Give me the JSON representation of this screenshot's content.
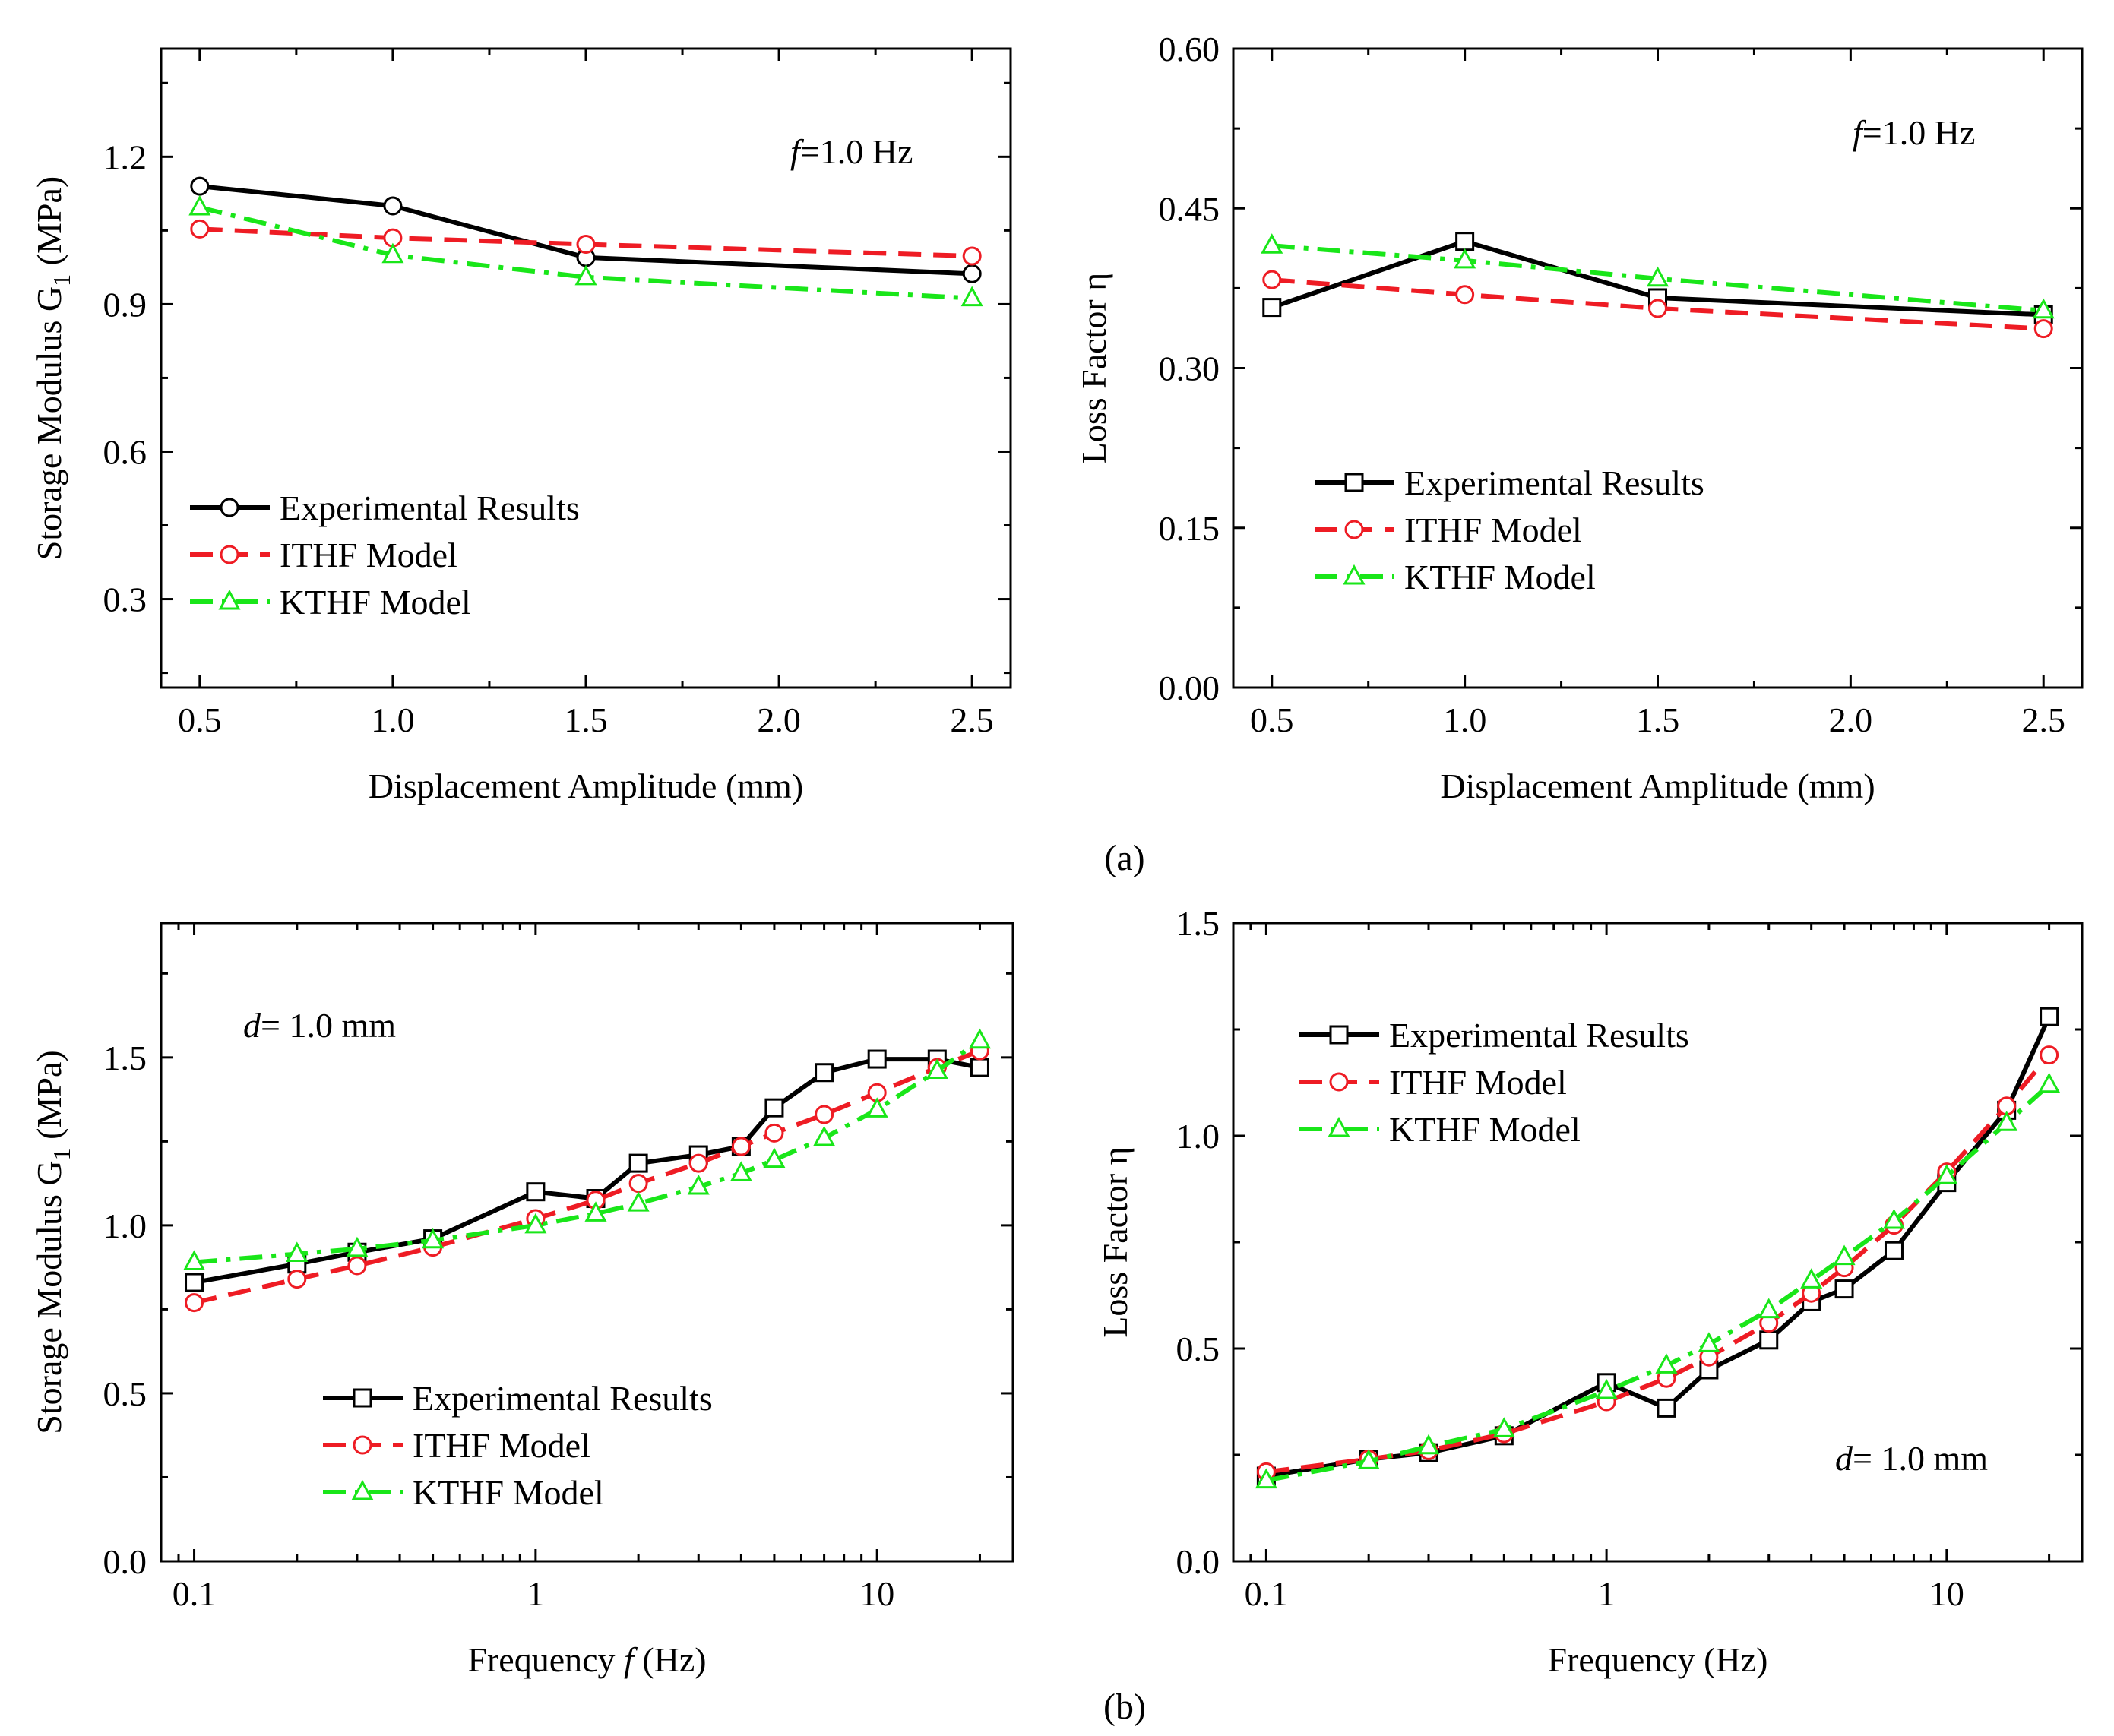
{
  "colors": {
    "experimental": "#000000",
    "ithf": "#ee1c24",
    "kthf": "#19e619"
  },
  "panel_labels": [
    "(a)",
    "(b)"
  ],
  "chart_data": [
    {
      "type": "line",
      "panel": "(a) left",
      "xlabel": "Displacement Amplitude  (mm)",
      "ylabel": "Storage Modulus G",
      "ylabel_sub": "1",
      "ylabel_unit": "(MPa)",
      "xscale": "linear",
      "xlim": [
        0.4,
        2.6
      ],
      "ylim": [
        0.12,
        1.42
      ],
      "xticks": [
        0.5,
        1.0,
        1.5,
        2.0,
        2.5
      ],
      "xtick_labels": [
        "0.5",
        "1.0",
        "1.5",
        "2.0",
        "2.5"
      ],
      "yticks": [
        0.3,
        0.6,
        0.9,
        1.2
      ],
      "ytick_labels": [
        "0.3",
        "0.6",
        "0.9",
        "1.2"
      ],
      "annotation": {
        "var": "f",
        "text": "=1.0 Hz",
        "position": "top-right"
      },
      "legend": {
        "position": "lower-left",
        "entries": [
          "Experimental Results",
          "ITHF Model",
          "KTHF Model"
        ]
      },
      "series": [
        {
          "name": "Experimental Results",
          "style": "solid",
          "marker": "circle",
          "x": [
            0.5,
            1.0,
            1.5,
            2.5
          ],
          "values": [
            1.14,
            1.1,
            0.995,
            0.962
          ]
        },
        {
          "name": "ITHF Model",
          "style": "dashed",
          "marker": "circle",
          "x": [
            0.5,
            1.0,
            1.5,
            2.5
          ],
          "values": [
            1.053,
            1.035,
            1.022,
            0.998
          ]
        },
        {
          "name": "KTHF Model",
          "style": "dashdot",
          "marker": "triangle",
          "x": [
            0.5,
            1.0,
            1.5,
            2.5
          ],
          "values": [
            1.097,
            1.0,
            0.955,
            0.912
          ]
        }
      ]
    },
    {
      "type": "line",
      "panel": "(a) right",
      "xlabel": "Displacement Amplitude  (mm)",
      "ylabel": "Loss Factor η",
      "xscale": "linear",
      "xlim": [
        0.4,
        2.6
      ],
      "ylim": [
        0.0,
        0.6
      ],
      "xticks": [
        0.5,
        1.0,
        1.5,
        2.0,
        2.5
      ],
      "xtick_labels": [
        "0.5",
        "1.0",
        "1.5",
        "2.0",
        "2.5"
      ],
      "yticks": [
        0.0,
        0.15,
        0.3,
        0.45,
        0.6
      ],
      "ytick_labels": [
        "0.00",
        "0.15",
        "0.30",
        "0.45",
        "0.60"
      ],
      "annotation": {
        "var": "f",
        "text": "=1.0 Hz",
        "position": "top-right"
      },
      "legend": {
        "position": "center-left",
        "entries": [
          "Experimental Results",
          "ITHF Model",
          "KTHF Model"
        ]
      },
      "series": [
        {
          "name": "Experimental Results",
          "style": "solid",
          "marker": "square",
          "x": [
            0.5,
            1.0,
            1.5,
            2.5
          ],
          "values": [
            0.357,
            0.419,
            0.366,
            0.35
          ]
        },
        {
          "name": "ITHF Model",
          "style": "dashed",
          "marker": "circle",
          "x": [
            0.5,
            1.0,
            1.5,
            2.5
          ],
          "values": [
            0.383,
            0.369,
            0.356,
            0.337
          ]
        },
        {
          "name": "KTHF Model",
          "style": "dashdot",
          "marker": "triangle",
          "x": [
            0.5,
            1.0,
            1.5,
            2.5
          ],
          "values": [
            0.415,
            0.401,
            0.384,
            0.354
          ]
        }
      ]
    },
    {
      "type": "line",
      "panel": "(b) left",
      "xlabel": "Frequency",
      "xlabel_var": "f",
      "xlabel_unit": "(Hz)",
      "ylabel": "Storage Modulus G",
      "ylabel_sub": "1",
      "ylabel_unit": "(MPa)",
      "xscale": "log",
      "xlim": [
        0.08,
        25
      ],
      "ylim": [
        0.0,
        1.9
      ],
      "xticks": [
        0.1,
        1,
        10
      ],
      "xtick_labels": [
        "0.1",
        "1",
        "10"
      ],
      "yticks": [
        0.0,
        0.5,
        1.0,
        1.5
      ],
      "ytick_labels": [
        "0.0",
        "0.5",
        "1.0",
        "1.5"
      ],
      "annotation": {
        "var": "d",
        "text": "= 1.0 mm",
        "position": "top-left"
      },
      "legend": {
        "position": "lower-center",
        "entries": [
          "Experimental Results",
          "ITHF Model",
          "KTHF Model"
        ]
      },
      "series": [
        {
          "name": "Experimental Results",
          "style": "solid",
          "marker": "square",
          "x": [
            0.1,
            0.2,
            0.3,
            0.5,
            1,
            1.5,
            2,
            3,
            4,
            5,
            7,
            10,
            15,
            20
          ],
          "values": [
            0.83,
            0.885,
            0.92,
            0.96,
            1.1,
            1.08,
            1.185,
            1.21,
            1.235,
            1.35,
            1.455,
            1.495,
            1.495,
            1.47
          ]
        },
        {
          "name": "ITHF Model",
          "style": "dashed",
          "marker": "circle",
          "x": [
            0.1,
            0.2,
            0.3,
            0.5,
            1,
            1.5,
            2,
            3,
            4,
            5,
            7,
            10,
            15,
            20
          ],
          "values": [
            0.77,
            0.84,
            0.88,
            0.935,
            1.02,
            1.075,
            1.125,
            1.185,
            1.235,
            1.275,
            1.33,
            1.395,
            1.47,
            1.52
          ]
        },
        {
          "name": "KTHF Model",
          "style": "dashdot",
          "marker": "triangle",
          "x": [
            0.1,
            0.2,
            0.3,
            0.5,
            1,
            1.5,
            2,
            3,
            4,
            5,
            7,
            10,
            15,
            20
          ],
          "values": [
            0.89,
            0.915,
            0.93,
            0.955,
            1.0,
            1.035,
            1.065,
            1.115,
            1.155,
            1.195,
            1.26,
            1.345,
            1.46,
            1.55
          ]
        }
      ]
    },
    {
      "type": "line",
      "panel": "(b) right",
      "xlabel": "Frequency  (Hz)",
      "ylabel": "Loss Factor η",
      "xscale": "log",
      "xlim": [
        0.08,
        25
      ],
      "ylim": [
        0.0,
        1.5
      ],
      "xticks": [
        0.1,
        1,
        10
      ],
      "xtick_labels": [
        "0.1",
        "1",
        "10"
      ],
      "yticks": [
        0.0,
        0.5,
        1.0,
        1.5
      ],
      "ytick_labels": [
        "0.0",
        "0.5",
        "1.0",
        "1.5"
      ],
      "annotation": {
        "var": "d",
        "text": "= 1.0 mm",
        "position": "bottom-right"
      },
      "legend": {
        "position": "top-left",
        "entries": [
          "Experimental Results",
          "ITHF Model",
          "KTHF Model"
        ]
      },
      "series": [
        {
          "name": "Experimental Results",
          "style": "solid",
          "marker": "square",
          "x": [
            0.1,
            0.2,
            0.3,
            0.5,
            1,
            1.5,
            2,
            3,
            4,
            5,
            7,
            10,
            15,
            20
          ],
          "values": [
            0.2,
            0.24,
            0.255,
            0.295,
            0.42,
            0.36,
            0.45,
            0.52,
            0.61,
            0.64,
            0.73,
            0.89,
            1.06,
            1.28
          ]
        },
        {
          "name": "ITHF Model",
          "style": "dashed",
          "marker": "circle",
          "x": [
            0.1,
            0.2,
            0.3,
            0.5,
            1,
            1.5,
            2,
            3,
            4,
            5,
            7,
            10,
            15,
            20
          ],
          "values": [
            0.21,
            0.24,
            0.26,
            0.3,
            0.375,
            0.43,
            0.48,
            0.56,
            0.63,
            0.69,
            0.79,
            0.915,
            1.07,
            1.19
          ]
        },
        {
          "name": "KTHF Model",
          "style": "dashdot",
          "marker": "triangle",
          "x": [
            0.1,
            0.2,
            0.3,
            0.5,
            1,
            1.5,
            2,
            3,
            4,
            5,
            7,
            10,
            15,
            20
          ],
          "values": [
            0.19,
            0.235,
            0.27,
            0.31,
            0.4,
            0.46,
            0.51,
            0.59,
            0.66,
            0.715,
            0.8,
            0.905,
            1.03,
            1.12
          ]
        }
      ]
    }
  ]
}
